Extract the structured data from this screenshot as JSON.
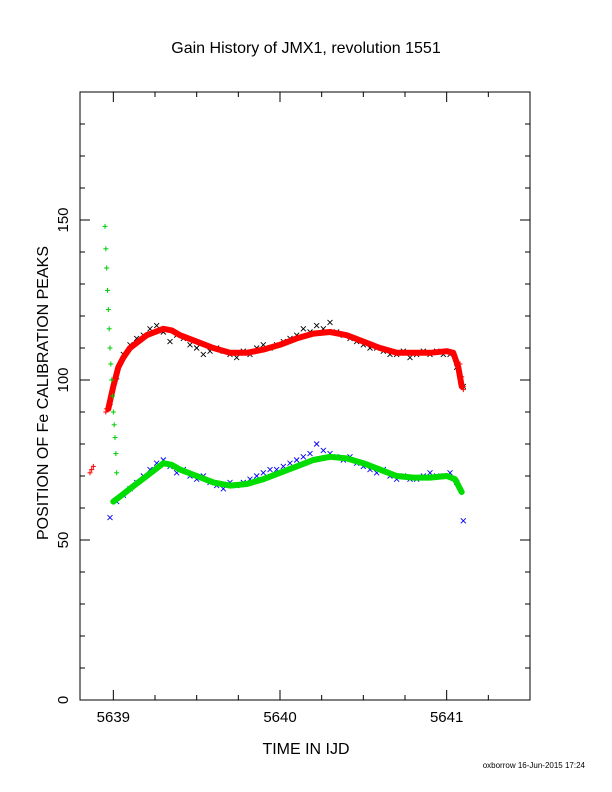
{
  "chart_data": {
    "type": "scatter",
    "title": "Gain History of JMX1, revolution 1551",
    "xlabel": "TIME IN IJD",
    "ylabel": "POSITION OF Fe CALIBRATION PEAKS",
    "xlim": [
      5638.8,
      5641.5
    ],
    "ylim": [
      0,
      190
    ],
    "x_ticks": [
      5639,
      5640,
      5641
    ],
    "y_ticks": [
      0,
      50,
      100,
      150
    ],
    "grid": false,
    "colors": {
      "upper_points": "#000000",
      "upper_fit": "#ff0000",
      "lower_points": "#0000ff",
      "lower_fit": "#00dd00",
      "calibration_marks": "#00cc00",
      "red_marks": "#ff0000"
    },
    "series": [
      {
        "marker": "x",
        "color": "#000000",
        "x": [
          5638.98,
          5639.02,
          5639.06,
          5639.1,
          5639.14,
          5639.18,
          5639.22,
          5639.26,
          5639.3,
          5639.34,
          5639.38,
          5639.42,
          5639.46,
          5639.5,
          5639.54,
          5639.58,
          5639.62,
          5639.66,
          5639.7,
          5639.74,
          5639.78,
          5639.82,
          5639.86,
          5639.9,
          5639.94,
          5639.98,
          5640.02,
          5640.06,
          5640.1,
          5640.14,
          5640.18,
          5640.22,
          5640.26,
          5640.3,
          5640.34,
          5640.38,
          5640.42,
          5640.46,
          5640.5,
          5640.54,
          5640.58,
          5640.62,
          5640.66,
          5640.7,
          5640.74,
          5640.78,
          5640.82,
          5640.86,
          5640.9,
          5640.94,
          5640.98,
          5641.02,
          5641.06,
          5641.1
        ],
        "y": [
          93,
          101,
          108,
          111,
          113,
          114,
          116,
          117,
          115,
          112,
          114,
          113,
          111,
          110,
          108,
          109,
          110,
          109,
          108,
          107,
          109,
          108,
          110,
          111,
          110,
          111,
          112,
          113,
          114,
          116,
          115,
          117,
          116,
          118,
          115,
          114,
          113,
          112,
          111,
          110,
          110,
          109,
          108,
          108,
          109,
          107,
          108,
          109,
          108,
          109,
          108,
          108,
          104,
          98
        ]
      },
      {
        "marker": "line",
        "color": "#ff0000",
        "x": [
          5638.97,
          5639.0,
          5639.03,
          5639.06,
          5639.1,
          5639.15,
          5639.2,
          5639.25,
          5639.3,
          5639.35,
          5639.4,
          5639.5,
          5639.6,
          5639.7,
          5639.8,
          5639.9,
          5640.0,
          5640.1,
          5640.2,
          5640.3,
          5640.4,
          5640.5,
          5640.6,
          5640.7,
          5640.8,
          5640.9,
          5641.0,
          5641.04,
          5641.07,
          5641.09
        ],
        "y": [
          91,
          98,
          104,
          107,
          110,
          112,
          114,
          115,
          116,
          115.5,
          114,
          112,
          110,
          108.5,
          108.5,
          109.5,
          111,
          113,
          114.5,
          115,
          114,
          112,
          110,
          108.5,
          108.5,
          108.5,
          109,
          108.5,
          104,
          98
        ]
      },
      {
        "marker": "x",
        "color": "#0000ff",
        "x": [
          5638.98,
          5639.02,
          5639.06,
          5639.1,
          5639.14,
          5639.18,
          5639.22,
          5639.26,
          5639.3,
          5639.34,
          5639.38,
          5639.42,
          5639.46,
          5639.5,
          5639.54,
          5639.58,
          5639.62,
          5639.66,
          5639.7,
          5639.74,
          5639.78,
          5639.82,
          5639.86,
          5639.9,
          5639.94,
          5639.98,
          5640.02,
          5640.06,
          5640.1,
          5640.14,
          5640.18,
          5640.22,
          5640.26,
          5640.3,
          5640.34,
          5640.38,
          5640.42,
          5640.46,
          5640.5,
          5640.54,
          5640.58,
          5640.62,
          5640.66,
          5640.7,
          5640.74,
          5640.78,
          5640.82,
          5640.86,
          5640.9,
          5640.94,
          5640.98,
          5641.02,
          5641.06,
          5641.1
        ],
        "y": [
          57,
          62,
          64,
          66,
          68,
          70,
          72,
          74,
          75,
          73,
          71,
          72,
          70,
          69,
          70,
          68,
          67,
          66,
          68,
          67,
          68,
          69,
          70,
          71,
          72,
          72,
          73,
          74,
          75,
          76,
          77,
          80,
          78,
          77,
          76,
          75,
          76,
          74,
          73,
          72,
          71,
          72,
          70,
          69,
          70,
          69,
          69,
          70,
          71,
          70,
          70,
          71,
          68,
          56
        ]
      },
      {
        "marker": "line",
        "color": "#00dd00",
        "x": [
          5639.0,
          5639.05,
          5639.1,
          5639.15,
          5639.2,
          5639.25,
          5639.3,
          5639.35,
          5639.4,
          5639.5,
          5639.6,
          5639.7,
          5639.8,
          5639.9,
          5640.0,
          5640.1,
          5640.2,
          5640.3,
          5640.4,
          5640.5,
          5640.6,
          5640.7,
          5640.8,
          5640.9,
          5641.0,
          5641.05,
          5641.09
        ],
        "y": [
          62,
          64,
          66,
          68,
          70,
          72,
          74,
          73.5,
          72,
          70,
          68,
          67,
          67.5,
          69,
          71,
          73,
          75,
          76,
          75.5,
          74,
          72,
          70,
          69.5,
          69.5,
          70,
          69,
          65
        ]
      },
      {
        "marker": "+",
        "color": "#00cc00",
        "x": [
          5638.95,
          5638.955,
          5638.96,
          5638.965,
          5638.97,
          5638.975,
          5638.98,
          5638.985,
          5638.99,
          5638.995,
          5639.0,
          5639.005,
          5639.01,
          5639.015,
          5639.02
        ],
        "y": [
          148,
          141,
          135,
          128,
          122,
          116,
          110,
          105,
          100,
          95,
          90,
          86,
          82,
          77,
          71
        ]
      },
      {
        "marker": "+",
        "color": "#ff0000",
        "x": [
          5638.86,
          5638.87,
          5638.88,
          5638.955,
          5638.96,
          5641.08,
          5641.09,
          5641.1,
          5641.1
        ],
        "y": [
          71,
          72,
          73,
          90,
          91,
          105,
          101,
          98,
          97
        ]
      }
    ]
  },
  "footer": {
    "credit": "oxborrow 16-Jun-2015 17:24"
  }
}
